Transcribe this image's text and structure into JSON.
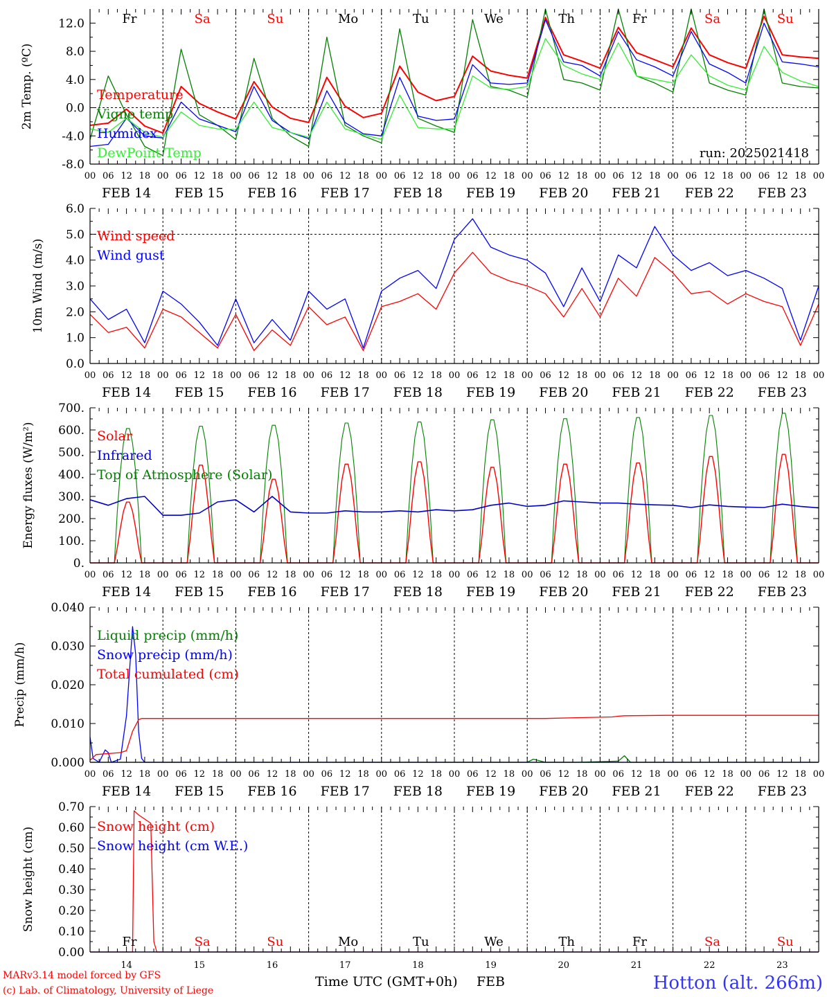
{
  "chart_data": [
    {
      "type": "line",
      "panel": "temperature",
      "ylabel": "2m Temp. (ºC)",
      "ylim": [
        -8.0,
        14.0
      ],
      "yticks": [
        "-8.0",
        "-4.0",
        "0.0",
        "4.0",
        "8.0",
        "12.0"
      ],
      "ytick_values": [
        -8,
        -4,
        0,
        4,
        8,
        12
      ],
      "run_label": "run: 2025021418",
      "weekday_labels": [
        "Fr",
        "Sa",
        "Su",
        "Mo",
        "Tu",
        "We",
        "Th",
        "Fr",
        "Sa",
        "Su"
      ],
      "series": [
        {
          "name": "Temperature",
          "color": "#ff0000",
          "x": [
            0,
            6,
            12,
            18,
            24,
            30,
            36,
            42,
            48,
            54,
            60,
            66,
            72,
            78,
            84,
            90,
            96,
            102,
            108,
            114,
            120,
            126,
            132,
            138,
            144,
            150,
            156,
            162,
            168,
            174,
            180,
            186,
            192,
            198,
            204,
            210,
            216,
            222,
            228,
            234,
            240
          ],
          "values": [
            -2.5,
            -2.2,
            -0.2,
            -2.6,
            -3.6,
            3.0,
            0.6,
            -0.6,
            -1.6,
            3.7,
            0.1,
            -1.5,
            -2.1,
            4.3,
            0.2,
            -1.4,
            -0.8,
            5.9,
            2.2,
            1.0,
            1.6,
            7.3,
            5.2,
            4.6,
            4.2,
            12.8,
            7.5,
            6.6,
            5.6,
            11.4,
            7.8,
            6.8,
            5.8,
            11.3,
            7.5,
            6.4,
            5.6,
            13.0,
            7.5,
            7.2,
            7.0
          ]
        },
        {
          "name": "Vigne temp",
          "color": "#008000",
          "x": [
            0,
            6,
            12,
            18,
            24,
            30,
            36,
            42,
            48,
            54,
            60,
            66,
            72,
            78,
            84,
            90,
            96,
            102,
            108,
            114,
            120,
            126,
            132,
            138,
            144,
            150,
            156,
            162,
            168,
            174,
            180,
            186,
            192,
            198,
            204,
            210,
            216,
            222,
            228,
            234,
            240
          ],
          "values": [
            -4.5,
            4.5,
            -1.0,
            -5.5,
            -6.8,
            8.3,
            -1.0,
            -2.5,
            -4.5,
            7.0,
            -1.5,
            -4.0,
            -5.5,
            10.0,
            -2.5,
            -4.0,
            -5.0,
            11.2,
            -1.5,
            -2.6,
            -3.5,
            12.5,
            3.0,
            2.5,
            1.5,
            14.0,
            4.0,
            3.5,
            2.5,
            14.0,
            4.5,
            3.5,
            2.2,
            14.0,
            3.5,
            2.5,
            1.8,
            14.0,
            3.5,
            3.0,
            2.8
          ]
        },
        {
          "name": "Humidex",
          "color": "#0000ff",
          "x": [
            0,
            6,
            12,
            18,
            24,
            30,
            36,
            42,
            48,
            54,
            60,
            66,
            72,
            78,
            84,
            90,
            96,
            102,
            108,
            114,
            120,
            126,
            132,
            138,
            144,
            150,
            156,
            162,
            168,
            174,
            180,
            186,
            192,
            198,
            204,
            210,
            216,
            222,
            228,
            234,
            240
          ],
          "values": [
            -5.5,
            -5.2,
            -1.5,
            -4.0,
            -4.3,
            0.8,
            -1.6,
            -2.5,
            -3.4,
            3.0,
            -1.8,
            -3.5,
            -4.4,
            2.4,
            -2.1,
            -3.7,
            -4.0,
            4.3,
            -1.2,
            -1.8,
            -1.6,
            6.1,
            3.5,
            3.3,
            3.5,
            12.5,
            6.5,
            6.0,
            4.5,
            10.8,
            6.8,
            5.8,
            4.5,
            10.8,
            6.2,
            5.0,
            3.5,
            12.0,
            6.5,
            6.2,
            5.8
          ]
        },
        {
          "name": "DewPoint Temp",
          "color": "#33ee33",
          "x": [
            0,
            6,
            12,
            18,
            24,
            30,
            36,
            42,
            48,
            54,
            60,
            66,
            72,
            78,
            84,
            90,
            96,
            102,
            108,
            114,
            120,
            126,
            132,
            138,
            144,
            150,
            156,
            162,
            168,
            174,
            180,
            186,
            192,
            198,
            204,
            210,
            216,
            222,
            228,
            234,
            240
          ],
          "values": [
            -3.0,
            -3.5,
            -1.5,
            -3.5,
            -4.2,
            -0.6,
            -2.5,
            -3.0,
            -3.1,
            0.8,
            -2.8,
            -3.5,
            -4.2,
            0.8,
            -3.0,
            -3.8,
            -4.5,
            1.8,
            -2.8,
            -3.0,
            -3.0,
            4.5,
            2.8,
            2.6,
            3.0,
            9.8,
            6.0,
            4.8,
            4.0,
            9.2,
            4.5,
            4.0,
            3.5,
            7.5,
            4.5,
            3.2,
            2.5,
            8.7,
            5.0,
            3.8,
            3.0
          ]
        }
      ]
    },
    {
      "type": "line",
      "panel": "wind",
      "ylabel": "10m Wind (m/s)",
      "ylim": [
        0.0,
        6.0
      ],
      "yticks": [
        "0.0",
        "1.0",
        "2.0",
        "3.0",
        "4.0",
        "5.0",
        "6.0"
      ],
      "ytick_values": [
        0,
        1,
        2,
        3,
        4,
        5,
        6
      ],
      "series": [
        {
          "name": "Wind speed",
          "color": "#ff0000",
          "x": [
            0,
            6,
            12,
            18,
            24,
            30,
            36,
            42,
            48,
            54,
            60,
            66,
            72,
            78,
            84,
            90,
            96,
            102,
            108,
            114,
            120,
            126,
            132,
            138,
            144,
            150,
            156,
            162,
            168,
            174,
            180,
            186,
            192,
            198,
            204,
            210,
            216,
            222,
            228,
            234,
            240
          ],
          "values": [
            1.9,
            1.2,
            1.4,
            0.6,
            2.1,
            1.8,
            1.2,
            0.6,
            1.9,
            0.5,
            1.3,
            0.7,
            2.2,
            1.5,
            1.8,
            0.5,
            2.2,
            2.4,
            2.7,
            2.1,
            3.5,
            4.3,
            3.5,
            3.2,
            3.0,
            2.7,
            1.8,
            2.9,
            1.8,
            3.3,
            2.6,
            4.1,
            3.5,
            2.7,
            2.8,
            2.3,
            2.7,
            2.4,
            2.2,
            0.7,
            2.3
          ]
        },
        {
          "name": "Wind gust",
          "color": "#0000ff",
          "x": [
            0,
            6,
            12,
            18,
            24,
            30,
            36,
            42,
            48,
            54,
            60,
            66,
            72,
            78,
            84,
            90,
            96,
            102,
            108,
            114,
            120,
            126,
            132,
            138,
            144,
            150,
            156,
            162,
            168,
            174,
            180,
            186,
            192,
            198,
            204,
            210,
            216,
            222,
            228,
            234,
            240
          ],
          "values": [
            2.5,
            1.7,
            2.1,
            0.8,
            2.8,
            2.3,
            1.6,
            0.7,
            2.5,
            0.8,
            1.7,
            0.9,
            2.8,
            2.1,
            2.5,
            0.6,
            2.8,
            3.3,
            3.6,
            2.9,
            4.8,
            5.6,
            4.5,
            4.2,
            4.0,
            3.5,
            2.2,
            3.7,
            2.4,
            4.2,
            3.7,
            5.3,
            4.2,
            3.6,
            3.9,
            3.4,
            3.6,
            3.3,
            2.9,
            0.9,
            3.0
          ]
        }
      ]
    },
    {
      "type": "line",
      "panel": "energy",
      "ylabel": "Energy fluxes (W/m²)",
      "ylim": [
        0.0,
        700.0
      ],
      "yticks": [
        "0.",
        "100.",
        "200.",
        "300.",
        "400.",
        "500.",
        "600.",
        "700."
      ],
      "ytick_values": [
        0,
        100,
        200,
        300,
        400,
        500,
        600,
        700
      ],
      "day_peaks": {
        "solar": [
          280,
          450,
          385,
          455,
          465,
          440,
          455,
          460,
          490,
          500
        ],
        "top_of_atmosphere": [
          615,
          625,
          630,
          640,
          645,
          655,
          660,
          665,
          675,
          685
        ],
        "solar_rise_hour": 8,
        "solar_set_hour": 17
      },
      "series": [
        {
          "name": "Solar",
          "color": "#ff0000"
        },
        {
          "name": "Infrared",
          "color": "#0000cc",
          "x": [
            0,
            6,
            12,
            18,
            24,
            30,
            36,
            42,
            48,
            54,
            60,
            66,
            72,
            78,
            84,
            90,
            96,
            102,
            108,
            114,
            120,
            126,
            132,
            138,
            144,
            150,
            156,
            162,
            168,
            174,
            180,
            186,
            192,
            198,
            204,
            210,
            216,
            222,
            228,
            234,
            240
          ],
          "values": [
            285,
            260,
            290,
            300,
            215,
            215,
            225,
            275,
            285,
            230,
            300,
            230,
            225,
            225,
            235,
            230,
            230,
            235,
            230,
            240,
            235,
            240,
            260,
            270,
            255,
            260,
            280,
            275,
            270,
            270,
            265,
            262,
            260,
            250,
            262,
            255,
            252,
            250,
            265,
            255,
            248
          ]
        },
        {
          "name": "Top of Atmosphere (Solar)",
          "color": "#008000"
        }
      ]
    },
    {
      "type": "line",
      "panel": "precip",
      "ylabel": "Precip (mm/h)",
      "ylim": [
        0.0,
        0.04
      ],
      "yticks": [
        "0.000",
        "0.010",
        "0.020",
        "0.030",
        "0.040"
      ],
      "ytick_values": [
        0,
        0.01,
        0.02,
        0.03,
        0.04
      ],
      "series": [
        {
          "name": "Liquid precip (mm/h)",
          "color": "#008000",
          "x": [
            0,
            144,
            146,
            148,
            150,
            160,
            174,
            176,
            178,
            186,
            240
          ],
          "values": [
            0,
            0,
            0.0008,
            0.0004,
            0,
            0,
            0.0003,
            0.0017,
            0,
            0,
            0
          ]
        },
        {
          "name": "Snow precip (mm/h)",
          "color": "#0000ff",
          "x": [
            0,
            1,
            3,
            5,
            6,
            7,
            10,
            12,
            14,
            15,
            16,
            17,
            18,
            19,
            240
          ],
          "values": [
            0.0065,
            0.001,
            0,
            0.0032,
            0.0025,
            0,
            0.0008,
            0.012,
            0.035,
            0.028,
            0.008,
            0.001,
            0,
            0,
            0
          ]
        },
        {
          "name": "Total cumulated (cm)",
          "color": "#ff0000",
          "x": [
            0,
            2,
            10,
            12,
            14,
            16,
            17,
            24,
            150,
            160,
            172,
            174,
            176,
            190,
            240
          ],
          "values": [
            0.0005,
            0.002,
            0.0025,
            0.003,
            0.008,
            0.011,
            0.0113,
            0.0113,
            0.0113,
            0.0115,
            0.0117,
            0.0119,
            0.012,
            0.0121,
            0.0121
          ]
        }
      ]
    },
    {
      "type": "line",
      "panel": "snow",
      "ylabel": "Snow height (cm)",
      "ylim": [
        0.0,
        0.7
      ],
      "yticks": [
        "0.00",
        "0.10",
        "0.20",
        "0.30",
        "0.40",
        "0.50",
        "0.60",
        "0.70"
      ],
      "ytick_values": [
        0,
        0.1,
        0.2,
        0.3,
        0.4,
        0.5,
        0.6,
        0.7
      ],
      "weekday_labels": [
        "Fr",
        "Sa",
        "Su",
        "Mo",
        "Tu",
        "We",
        "Th",
        "Fr",
        "Sa",
        "Su"
      ],
      "day_numbers": [
        "14",
        "15",
        "16",
        "17",
        "18",
        "19",
        "20",
        "21",
        "22",
        "23"
      ],
      "series": [
        {
          "name": "Snow height (cm)",
          "color": "#ff0000",
          "x": [
            0,
            14,
            14.5,
            16,
            20,
            21,
            22,
            240
          ],
          "values": [
            0,
            0,
            0.68,
            0.66,
            0.62,
            0.05,
            0,
            0
          ]
        },
        {
          "name": "Snow height (cm W.E.)",
          "color": "#0000ff",
          "x": [
            0,
            240
          ],
          "values": [
            0,
            0
          ]
        }
      ]
    }
  ],
  "x_axis": {
    "hour_labels": [
      "00",
      "06",
      "12",
      "18"
    ],
    "end_label": "00",
    "date_labels": [
      "FEB 14",
      "FEB 15",
      "FEB 16",
      "FEB 17",
      "FEB 18",
      "FEB 19",
      "FEB 20",
      "FEB 21",
      "FEB 22",
      "FEB 23"
    ],
    "xlabel": "Time UTC (GMT+0h)",
    "month": "FEB"
  },
  "weekend_color": "#ff0000",
  "footer": {
    "model": "MARv3.14 model forced by GFS",
    "credit": "(c) Lab. of Climatology, University of Liege",
    "station": "Hotton (alt. 266m)"
  }
}
